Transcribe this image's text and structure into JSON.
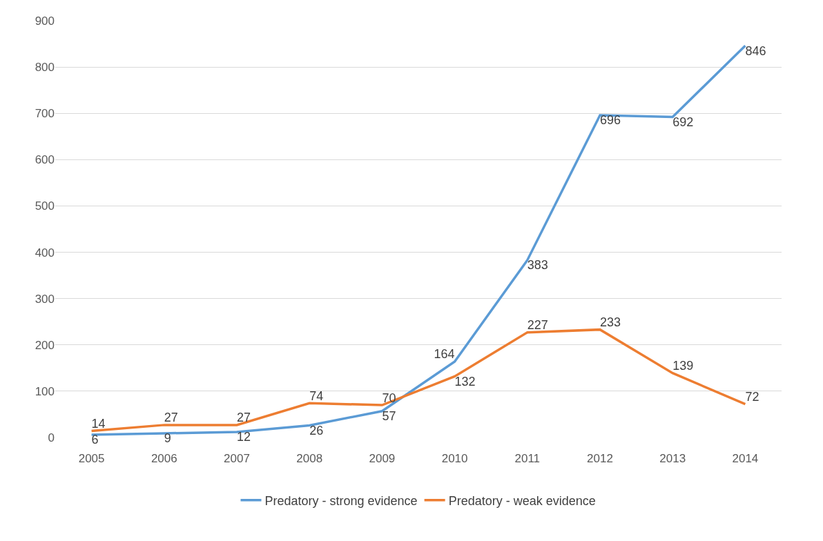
{
  "chart_data": {
    "type": "line",
    "categories": [
      "2005",
      "2006",
      "2007",
      "2008",
      "2009",
      "2010",
      "2011",
      "2012",
      "2013",
      "2014"
    ],
    "series": [
      {
        "name": "Predatory - strong evidence",
        "color": "#5b9bd5",
        "values": [
          6,
          9,
          12,
          26,
          57,
          164,
          383,
          696,
          692,
          846
        ]
      },
      {
        "name": "Predatory - weak evidence",
        "color": "#ed7d31",
        "values": [
          14,
          27,
          27,
          74,
          70,
          132,
          227,
          233,
          139,
          72
        ]
      }
    ],
    "ylim": [
      0,
      900
    ],
    "yticks": [
      0,
      100,
      200,
      300,
      400,
      500,
      600,
      700,
      800,
      900
    ],
    "grid": "y",
    "legend": "bottom",
    "marker": "none",
    "line_style": "solid",
    "data_labels": true
  }
}
